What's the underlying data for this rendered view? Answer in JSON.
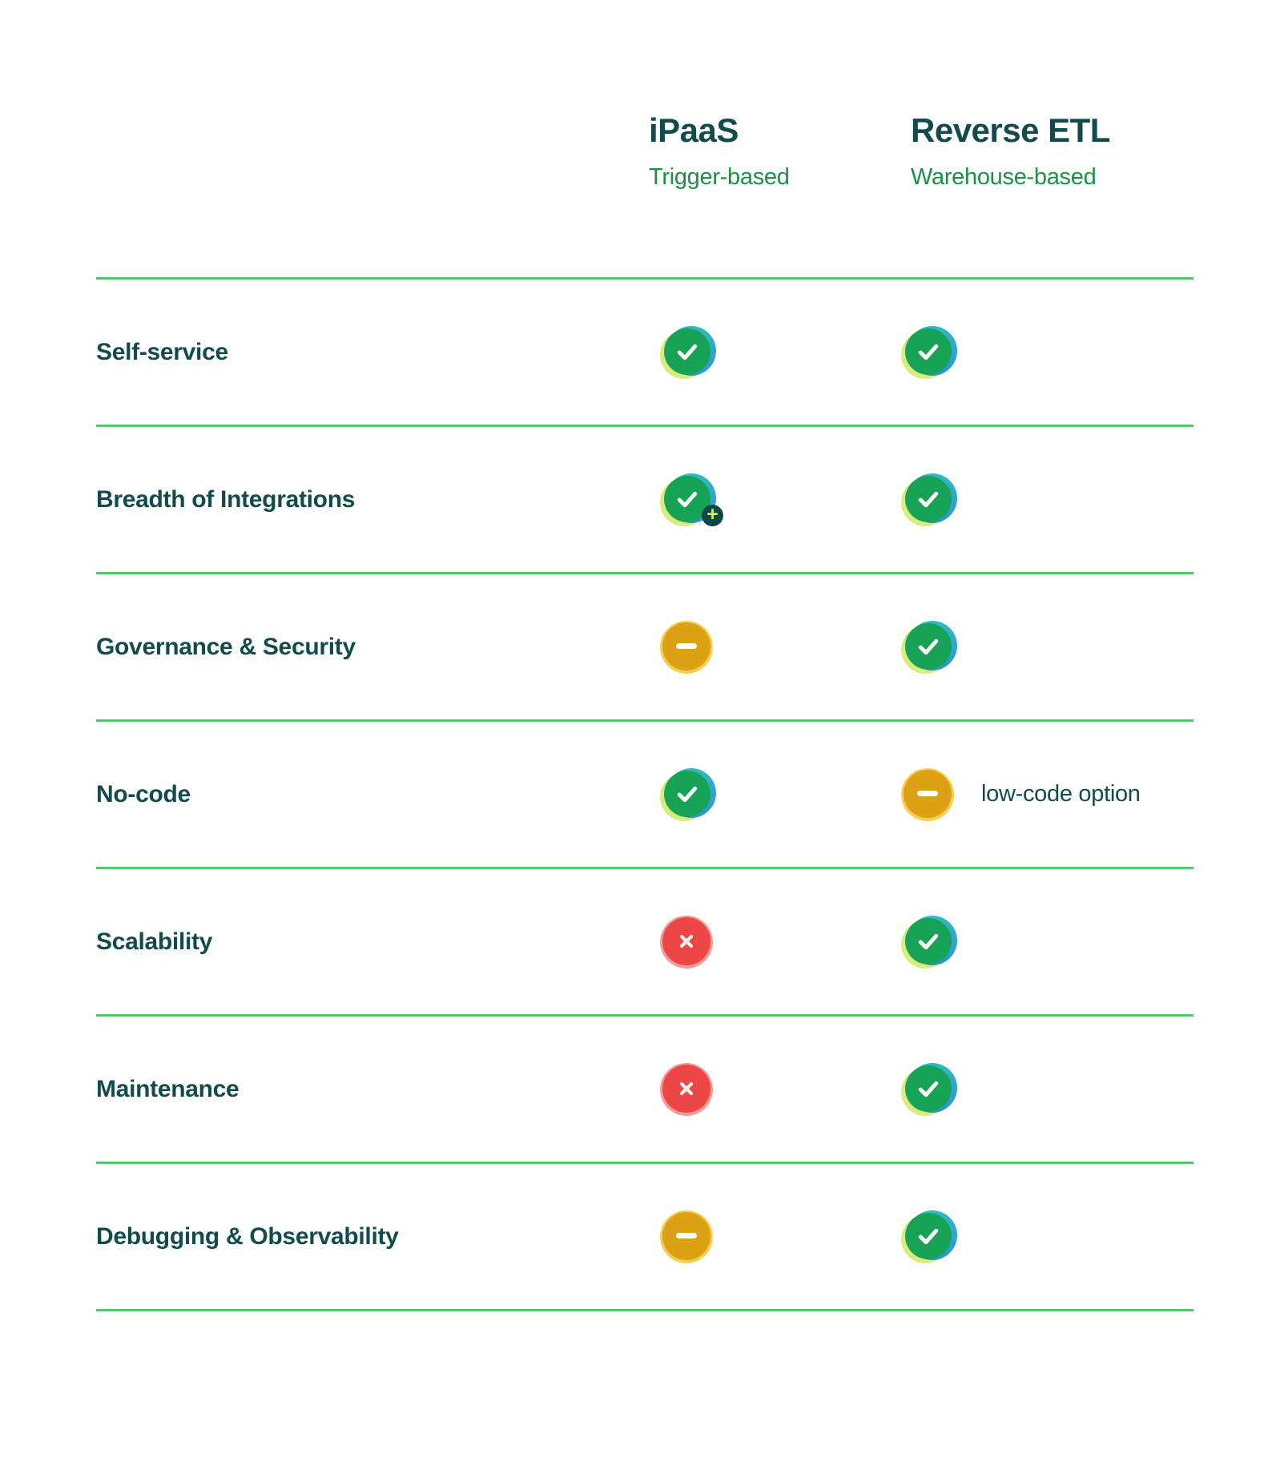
{
  "colors": {
    "heading_text": "#114b4b",
    "subtitle_green": "#1b9044",
    "divider_green": "#57c36a",
    "check_green": "#16a355",
    "check_lime": "#d9ed7e",
    "check_teal_top": "#2fbac0",
    "check_teal_bottom": "#2f92d8",
    "warn_amber": "#dda114",
    "warn_amber_light": "#f6ce55",
    "error_red": "#ee4646",
    "error_red_light": "#f79a93",
    "badge_dark_teal": "#0d4848",
    "badge_plus_lime": "#d3ea6a"
  },
  "header": {
    "columns": [
      {
        "title": "iPaaS",
        "subtitle": "Trigger-based"
      },
      {
        "title": "Reverse ETL",
        "subtitle": "Warehouse-based"
      }
    ]
  },
  "icons": {
    "plus_glyph": "+",
    "legend": {
      "check": "check-icon",
      "check-plus": "check-plus-icon",
      "dash": "dash-icon",
      "cross": "cross-icon"
    }
  },
  "table": {
    "rows": [
      {
        "label": "Self-service",
        "cells": [
          {
            "icon": "check"
          },
          {
            "icon": "check"
          }
        ]
      },
      {
        "label": "Breadth of Integrations",
        "cells": [
          {
            "icon": "check-plus"
          },
          {
            "icon": "check"
          }
        ]
      },
      {
        "label": "Governance & Security",
        "cells": [
          {
            "icon": "dash"
          },
          {
            "icon": "check"
          }
        ]
      },
      {
        "label": "No-code",
        "cells": [
          {
            "icon": "check"
          },
          {
            "icon": "dash",
            "note": "low-code option"
          }
        ]
      },
      {
        "label": "Scalability",
        "cells": [
          {
            "icon": "cross"
          },
          {
            "icon": "check"
          }
        ]
      },
      {
        "label": "Maintenance",
        "cells": [
          {
            "icon": "cross"
          },
          {
            "icon": "check"
          }
        ]
      },
      {
        "label": "Debugging & Observability",
        "cells": [
          {
            "icon": "dash"
          },
          {
            "icon": "check"
          }
        ]
      }
    ]
  },
  "chart_data": {
    "type": "table",
    "title": "",
    "columns": [
      {
        "title": "iPaaS",
        "subtitle": "Trigger-based"
      },
      {
        "title": "Reverse ETL",
        "subtitle": "Warehouse-based"
      }
    ],
    "categories": [
      "Self-service",
      "Breadth of Integrations",
      "Governance & Security",
      "No-code",
      "Scalability",
      "Maintenance",
      "Debugging & Observability"
    ],
    "values": [
      [
        "yes",
        "yes"
      ],
      [
        "yes-plus",
        "yes"
      ],
      [
        "partial",
        "yes"
      ],
      [
        "yes",
        "partial (low-code option)"
      ],
      [
        "no",
        "yes"
      ],
      [
        "no",
        "yes"
      ],
      [
        "partial",
        "yes"
      ]
    ],
    "legend": {
      "yes": "green check",
      "yes-plus": "green check with plus badge",
      "partial": "amber dash",
      "no": "red cross"
    },
    "grid": "horizontal divider lines between rows"
  }
}
